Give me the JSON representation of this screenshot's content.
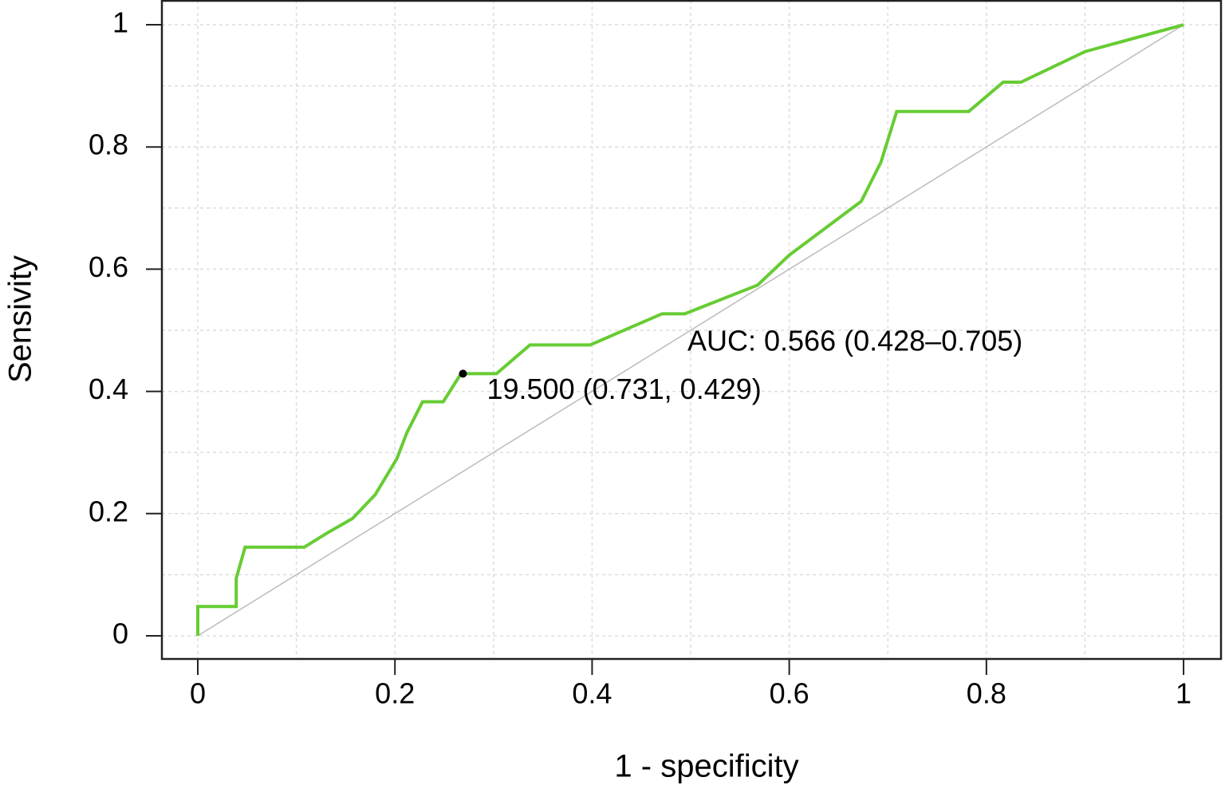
{
  "chart_data": {
    "type": "line",
    "xlabel": "1 - specificity",
    "ylabel": "Sensivity",
    "xlim": [
      -0.0364,
      1.0388
    ],
    "ylim": [
      -0.0379,
      1.0405
    ],
    "xticks": [
      0,
      0.2,
      0.4,
      0.6,
      0.8,
      1
    ],
    "yticks": [
      0,
      0.2,
      0.4,
      0.6,
      0.8,
      1
    ],
    "grid": true,
    "xgrid": [
      0,
      0.1,
      0.2,
      0.3,
      0.4,
      0.5,
      0.6,
      0.7,
      0.8,
      0.9,
      1
    ],
    "ygrid": [
      0,
      0.1,
      0.2,
      0.3,
      0.4,
      0.5,
      0.6,
      0.7,
      0.8,
      0.9,
      1
    ],
    "series": [
      {
        "color": "#66cc33",
        "x": [
          0,
          0,
          0.039,
          0.039,
          0.048,
          0.108,
          0.131,
          0.157,
          0.18,
          0.202,
          0.212,
          0.228,
          0.249,
          0.267,
          0.303,
          0.337,
          0.398,
          0.471,
          0.494,
          0.568,
          0.6,
          0.673,
          0.693,
          0.709,
          0.782,
          0.817,
          0.835,
          0.9,
          1
        ],
        "values": [
          0,
          0.048,
          0.048,
          0.094,
          0.145,
          0.145,
          0.168,
          0.192,
          0.231,
          0.29,
          0.332,
          0.383,
          0.383,
          0.429,
          0.429,
          0.476,
          0.476,
          0.527,
          0.527,
          0.574,
          0.623,
          0.711,
          0.775,
          0.858,
          0.858,
          0.906,
          0.906,
          0.956,
          1
        ]
      }
    ],
    "threshold_point": {
      "x": 0.269,
      "y": 0.429,
      "color": "#000000",
      "label": "19.500 (0.731, 0.429)"
    },
    "auc_label": "AUC: 0.566 (0.428–0.705)"
  }
}
